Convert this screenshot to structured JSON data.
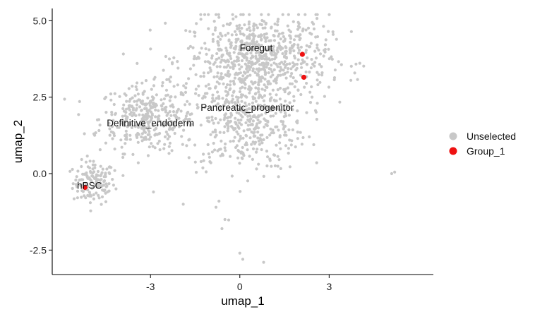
{
  "chart_data": {
    "type": "scatter",
    "xlabel": "umap_1",
    "ylabel": "umap_2",
    "xlim": [
      -6.3,
      6.5
    ],
    "ylim": [
      -3.3,
      5.4
    ],
    "x_ticks": [
      -3,
      0,
      3
    ],
    "x_tick_labels": [
      "-3",
      "0",
      "3"
    ],
    "y_ticks": [
      -2.5,
      0.0,
      2.5,
      5.0
    ],
    "y_tick_labels": [
      "-2.5",
      "0.0",
      "2.5",
      "5.0"
    ],
    "grid": false,
    "legend_position": "right",
    "series": [
      {
        "name": "Unselected",
        "color": "#c8c8c8",
        "clusters": [
          {
            "label": "hPSC",
            "cx": -4.9,
            "cy": -0.3,
            "sx": 0.35,
            "sy": 0.35,
            "n": 130
          },
          {
            "label": "Definitive_endoderm",
            "cx": -3.1,
            "cy": 1.8,
            "sx": 0.8,
            "sy": 0.55,
            "n": 340
          },
          {
            "label": "Pancreatic_progenitor",
            "cx": 0.2,
            "cy": 1.7,
            "sx": 1.0,
            "sy": 0.8,
            "n": 420
          },
          {
            "label": "Foregut",
            "cx": 0.6,
            "cy": 3.8,
            "sx": 1.2,
            "sy": 0.7,
            "n": 700
          }
        ],
        "outliers": [
          [
            5.1,
            0.0
          ],
          [
            5.2,
            0.05
          ],
          [
            -1.9,
            -1.0
          ],
          [
            -0.6,
            -1.8
          ],
          [
            -0.5,
            -1.5
          ],
          [
            0.1,
            -2.8
          ],
          [
            0.0,
            -2.6
          ],
          [
            0.8,
            -2.9
          ],
          [
            -0.8,
            -1.1
          ],
          [
            -2.9,
            -0.6
          ],
          [
            -4.2,
            0.1
          ],
          [
            -4.9,
            1.3
          ],
          [
            -4.5,
            1.0
          ],
          [
            1.3,
            -0.1
          ],
          [
            -0.7,
            -0.9
          ]
        ]
      },
      {
        "name": "Group_1",
        "color": "#ee1111",
        "points": [
          [
            2.1,
            3.9
          ],
          [
            2.15,
            3.15
          ],
          [
            -5.2,
            -0.45
          ]
        ]
      }
    ],
    "cluster_labels": [
      {
        "text": "Foregut",
        "x": 0.55,
        "y": 4.0
      },
      {
        "text": "Pancreatic_progenitor",
        "x": 0.25,
        "y": 2.05
      },
      {
        "text": "Definitive_endoderm",
        "x": -3.0,
        "y": 1.55
      },
      {
        "text": "hPSC",
        "x": -5.05,
        "y": -0.5
      }
    ]
  }
}
